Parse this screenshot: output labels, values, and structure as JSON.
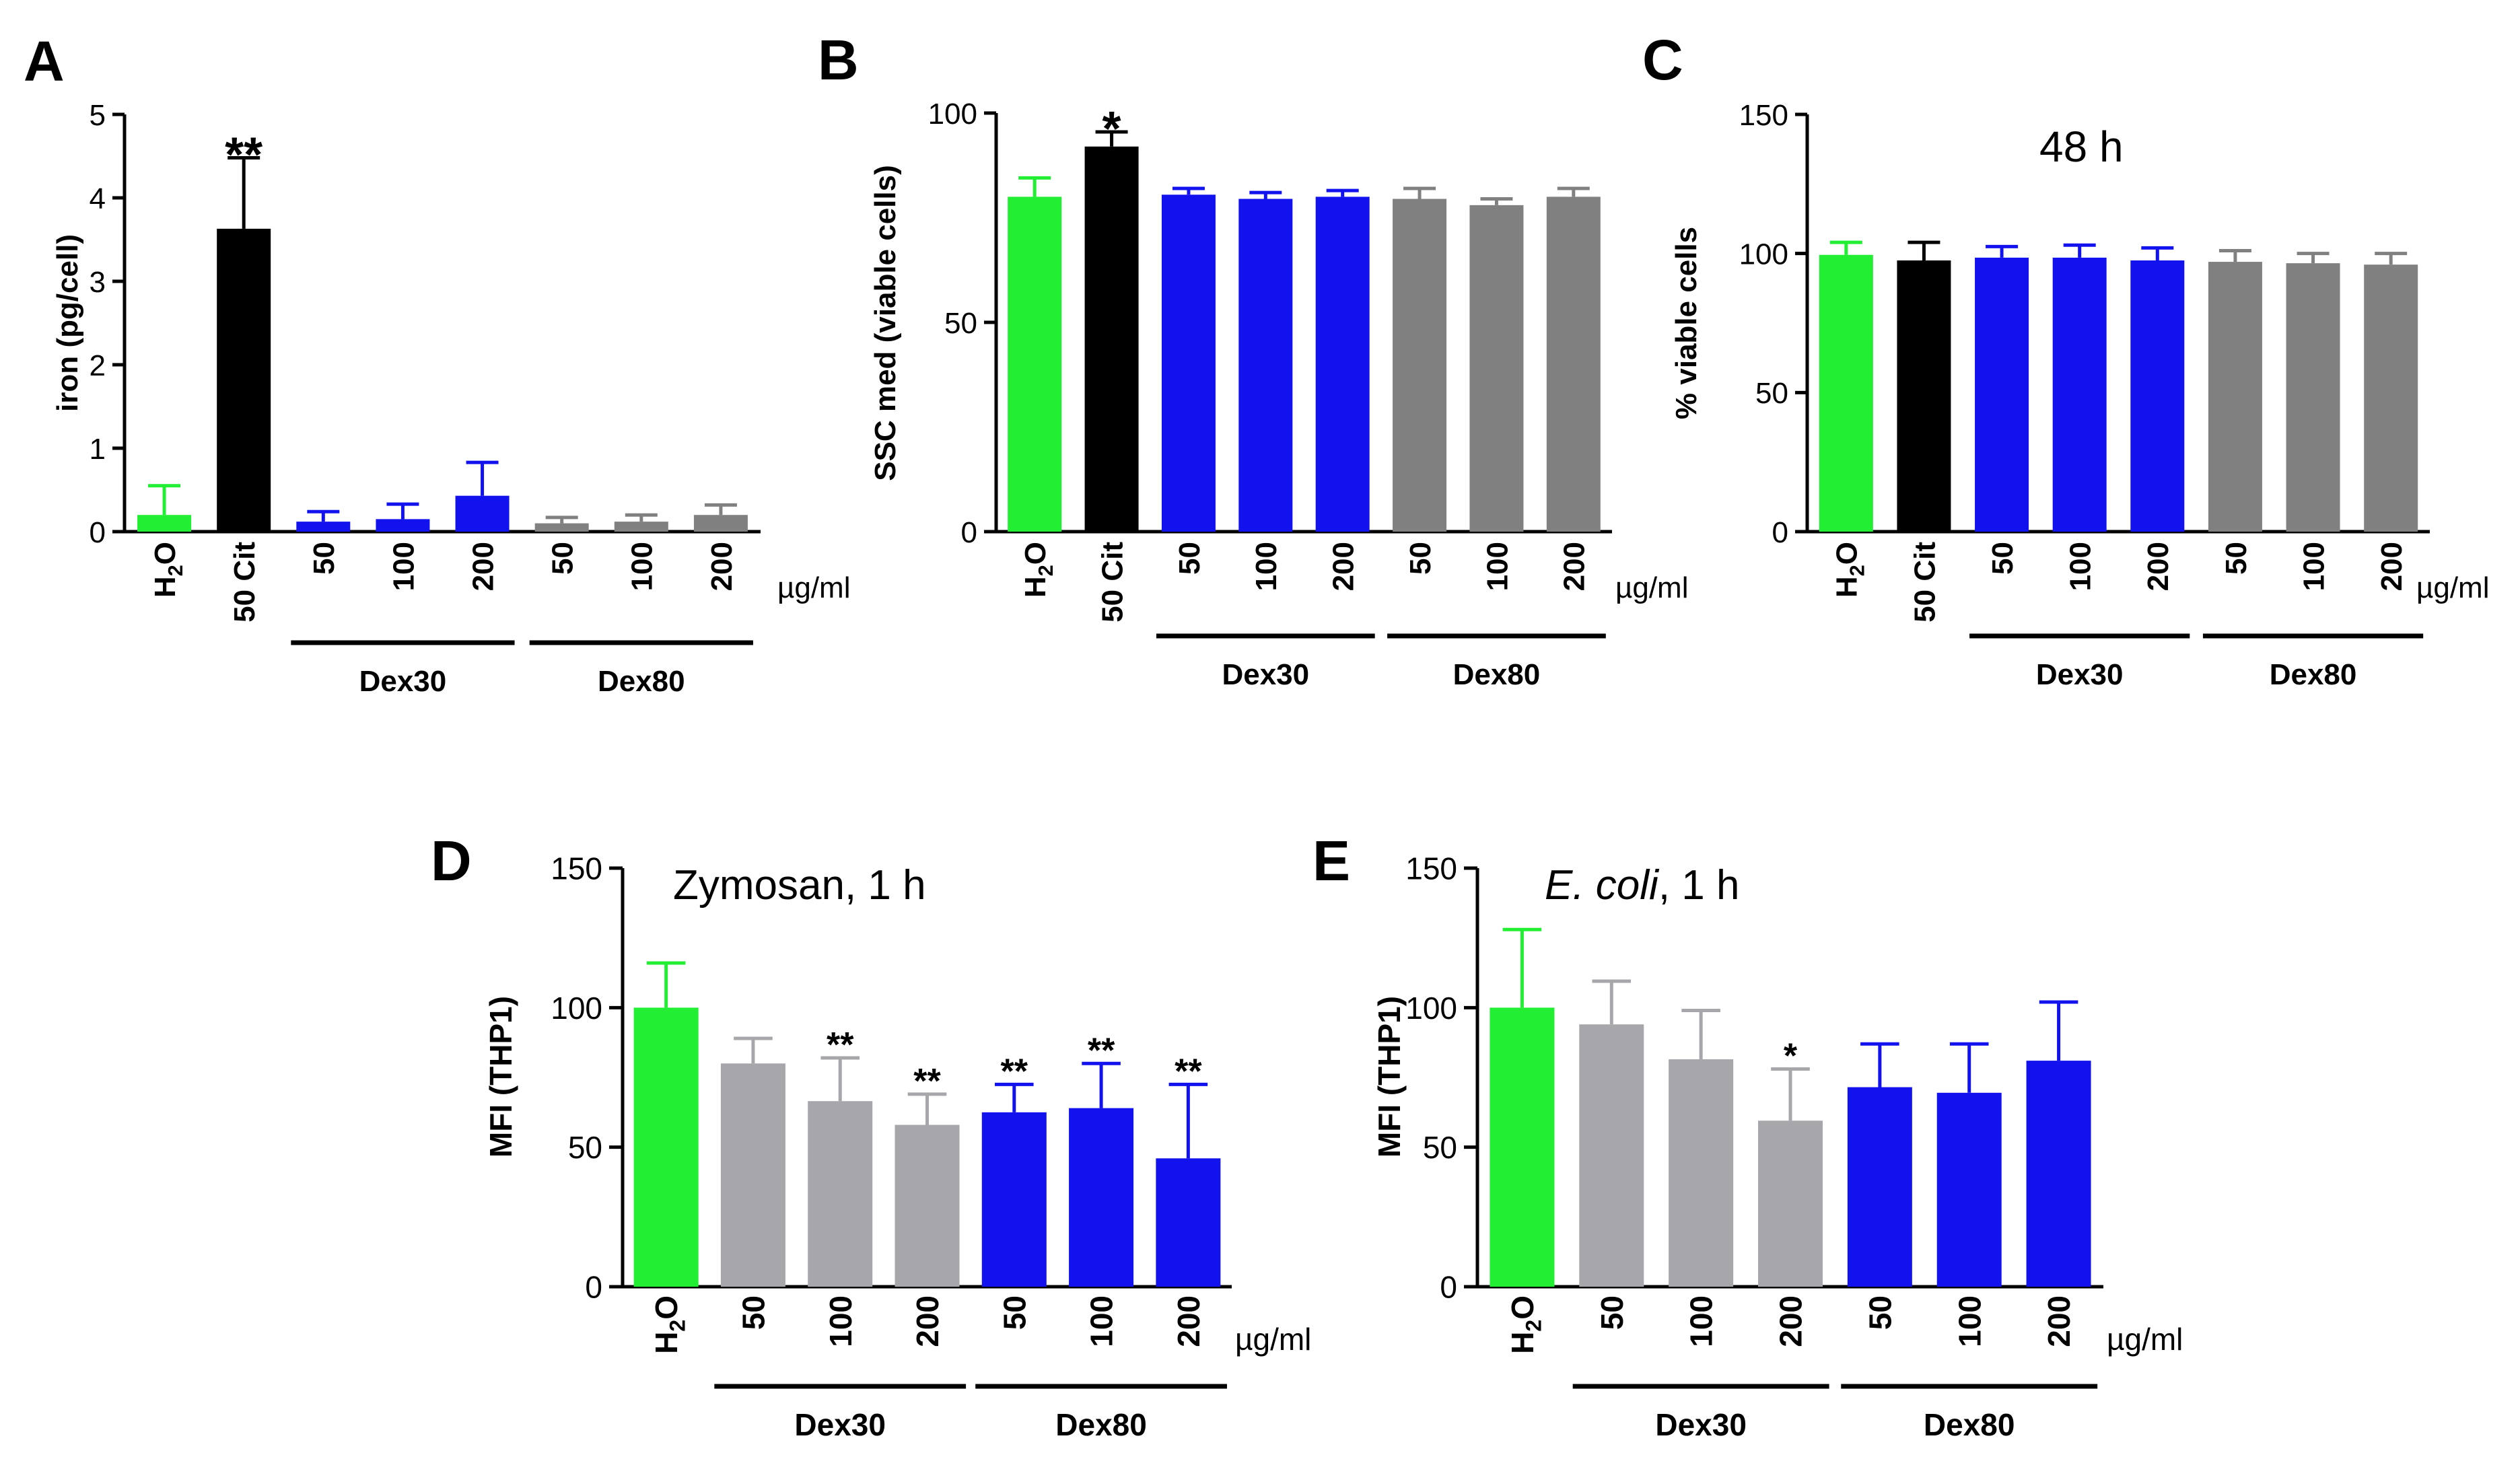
{
  "figure_unit": "µg/ml",
  "colors": {
    "green": "#22ee33",
    "black": "#000000",
    "blue": "#1212ee",
    "darkgray": "#808080",
    "lightgray": "#a6a6ab"
  },
  "chart_data": [
    {
      "id": "A",
      "panel_label": "A",
      "type": "bar",
      "title": "",
      "ylabel": "iron (pg/cell)",
      "ylim": [
        0,
        5
      ],
      "yticks": [
        "0",
        "1",
        "2",
        "3",
        "4",
        "5"
      ],
      "categories": [
        "H2O",
        "50 Cit",
        "50",
        "100",
        "200",
        "50",
        "100",
        "200"
      ],
      "values": [
        0.2,
        3.63,
        0.12,
        0.15,
        0.43,
        0.1,
        0.12,
        0.2
      ],
      "errors": [
        0.35,
        0.85,
        0.12,
        0.18,
        0.4,
        0.07,
        0.08,
        0.12
      ],
      "bar_colors": [
        "green",
        "black",
        "blue",
        "blue",
        "blue",
        "darkgray",
        "darkgray",
        "darkgray"
      ],
      "significance": [
        "",
        "**",
        "",
        "",
        "",
        "",
        "",
        ""
      ],
      "unit": "µg/ml",
      "groups": [
        {
          "label": "Dex30",
          "from": 2,
          "to": 4
        },
        {
          "label": "Dex80",
          "from": 5,
          "to": 7
        }
      ]
    },
    {
      "id": "B",
      "panel_label": "B",
      "type": "bar",
      "title": "",
      "ylabel": "SSC med (viable cells)",
      "ylim": [
        0,
        100
      ],
      "yticks": [
        "0",
        "50",
        "100"
      ],
      "categories": [
        "H2O",
        "50 Cit",
        "50",
        "100",
        "200",
        "50",
        "100",
        "200"
      ],
      "values": [
        80,
        92,
        80.5,
        79.5,
        80,
        79.5,
        78,
        80
      ],
      "errors": [
        4.5,
        3.5,
        1.5,
        1.5,
        1.5,
        2.5,
        1.5,
        2
      ],
      "bar_colors": [
        "green",
        "black",
        "blue",
        "blue",
        "blue",
        "darkgray",
        "darkgray",
        "darkgray"
      ],
      "significance": [
        "",
        "*",
        "",
        "",
        "",
        "",
        "",
        ""
      ],
      "unit": "µg/ml",
      "groups": [
        {
          "label": "Dex30",
          "from": 2,
          "to": 4
        },
        {
          "label": "Dex80",
          "from": 5,
          "to": 7
        }
      ]
    },
    {
      "id": "C",
      "panel_label": "C",
      "type": "bar",
      "title": "48 h",
      "ylabel": "% viable cells",
      "ylim": [
        0,
        150
      ],
      "yticks": [
        "0",
        "50",
        "100",
        "150"
      ],
      "categories": [
        "H2O",
        "50 Cit",
        "50",
        "100",
        "200",
        "50",
        "100",
        "200"
      ],
      "values": [
        99.5,
        97.5,
        98.5,
        98.5,
        97.5,
        97,
        96.5,
        96
      ],
      "errors": [
        4.5,
        6.5,
        4,
        4.5,
        4.5,
        4,
        3.5,
        4
      ],
      "bar_colors": [
        "green",
        "black",
        "blue",
        "blue",
        "blue",
        "darkgray",
        "darkgray",
        "darkgray"
      ],
      "significance": [
        "",
        "",
        "",
        "",
        "",
        "",
        "",
        ""
      ],
      "unit": "µg/ml",
      "groups": [
        {
          "label": "Dex30",
          "from": 2,
          "to": 4
        },
        {
          "label": "Dex80",
          "from": 5,
          "to": 7
        }
      ]
    },
    {
      "id": "D",
      "panel_label": "D",
      "type": "bar",
      "title": "Zymosan, 1 h",
      "ylabel": "MFI (THP1)",
      "ylim": [
        0,
        150
      ],
      "yticks": [
        "0",
        "50",
        "100",
        "150"
      ],
      "categories": [
        "H2O",
        "50",
        "100",
        "200",
        "50",
        "100",
        "200"
      ],
      "values": [
        100,
        80,
        66.5,
        58,
        62.5,
        64,
        46
      ],
      "errors": [
        16,
        9,
        15.5,
        11,
        10,
        16,
        26.5
      ],
      "bar_colors": [
        "green",
        "lightgray",
        "lightgray",
        "lightgray",
        "blue",
        "blue",
        "blue"
      ],
      "significance": [
        "",
        "",
        "**",
        "**",
        "**",
        "**",
        "**"
      ],
      "unit": "µg/ml",
      "groups": [
        {
          "label": "Dex30",
          "from": 1,
          "to": 3
        },
        {
          "label": "Dex80",
          "from": 4,
          "to": 6
        }
      ]
    },
    {
      "id": "E",
      "panel_label": "E",
      "type": "bar",
      "title_italic": "E. coli",
      "title_rest": ", 1 h",
      "ylabel": "MFI (THP1)",
      "ylim": [
        0,
        150
      ],
      "yticks": [
        "0",
        "50",
        "100",
        "150"
      ],
      "categories": [
        "H2O",
        "50",
        "100",
        "200",
        "50",
        "100",
        "200"
      ],
      "values": [
        100,
        94,
        81.5,
        59.5,
        71.5,
        69.5,
        81
      ],
      "errors": [
        28,
        15.5,
        17.5,
        18.5,
        15.5,
        17.5,
        21
      ],
      "bar_colors": [
        "green",
        "lightgray",
        "lightgray",
        "lightgray",
        "blue",
        "blue",
        "blue"
      ],
      "significance": [
        "",
        "",
        "",
        "*",
        "",
        "",
        ""
      ],
      "unit": "µg/ml",
      "groups": [
        {
          "label": "Dex30",
          "from": 1,
          "to": 3
        },
        {
          "label": "Dex80",
          "from": 4,
          "to": 6
        }
      ]
    }
  ]
}
